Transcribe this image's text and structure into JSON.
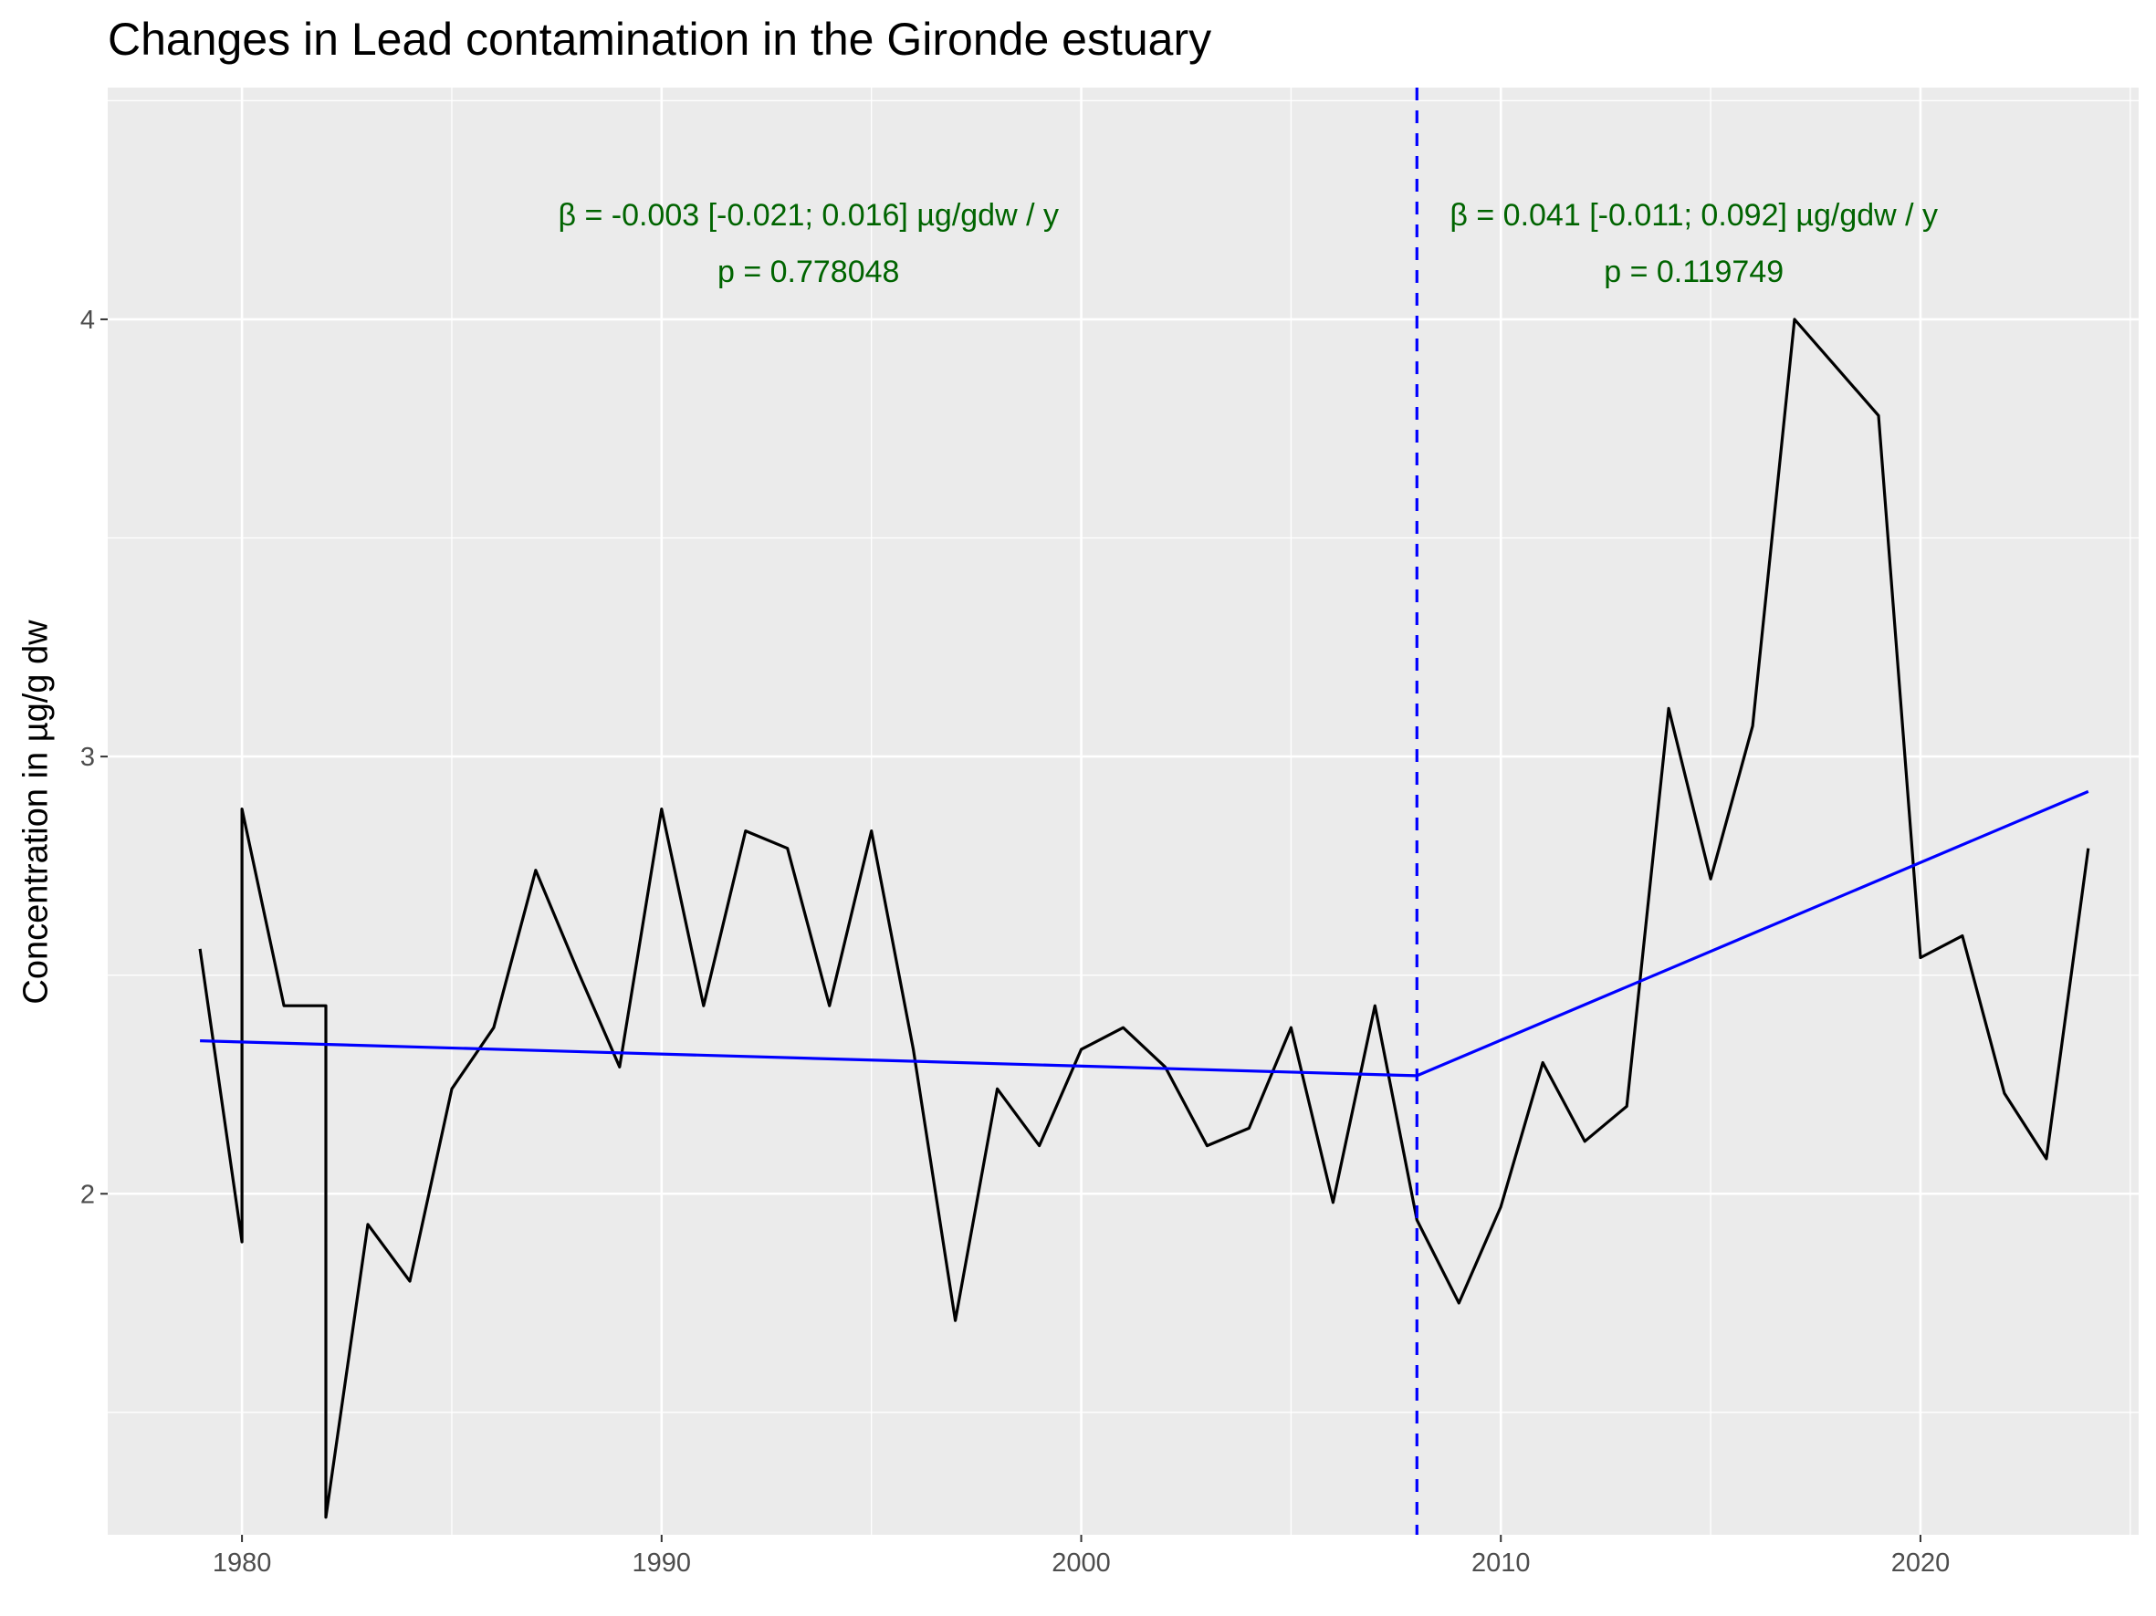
{
  "chart_data": {
    "type": "line",
    "title": "Changes in Lead contamination in the Gironde estuary",
    "xlabel": "",
    "ylabel": "Concentration in µg/g dw",
    "xlim": [
      1976.8,
      2025.2
    ],
    "ylim": [
      1.22,
      4.53
    ],
    "x_ticks": [
      1980,
      1990,
      2000,
      2010,
      2020
    ],
    "y_ticks": [
      2,
      3,
      4
    ],
    "grid": true,
    "series": [
      {
        "color": "#000000",
        "x": [
          1979,
          1980,
          1980,
          1981,
          1982,
          1982,
          1983,
          1984,
          1985,
          1986,
          1987,
          1988,
          1989,
          1990,
          1991,
          1992,
          1993,
          1994,
          1995,
          1996,
          1997,
          1998,
          1999,
          2000,
          2001,
          2002,
          2003,
          2004,
          2005,
          2006,
          2007,
          2008,
          2009,
          2010,
          2011,
          2012,
          2013,
          2014,
          2015,
          2016,
          2017,
          2018,
          2019,
          2020,
          2021,
          2022,
          2023,
          2024
        ],
        "y": [
          2.56,
          1.89,
          2.88,
          2.43,
          2.43,
          1.26,
          1.93,
          1.8,
          2.24,
          2.38,
          2.74,
          2.51,
          2.29,
          2.88,
          2.43,
          2.83,
          2.79,
          2.43,
          2.83,
          2.33,
          1.71,
          2.24,
          2.11,
          2.33,
          2.38,
          2.29,
          2.11,
          2.15,
          2.38,
          1.98,
          2.43,
          1.94,
          1.75,
          1.97,
          2.3,
          2.12,
          2.2,
          3.11,
          2.72,
          3.07,
          4.0,
          3.89,
          3.78,
          2.54,
          2.59,
          2.23,
          2.08,
          2.79
        ]
      },
      {
        "color": "#0000ff",
        "x": [
          1979,
          2008
        ],
        "y": [
          2.35,
          2.27
        ]
      },
      {
        "color": "#0000ff",
        "x": [
          2008,
          2024
        ],
        "y": [
          2.27,
          2.92
        ]
      }
    ],
    "breakpoint": {
      "x": 2008,
      "color": "#0000ff",
      "style": "dashed"
    },
    "annotations": [
      {
        "x": 1993.5,
        "y": 4.24,
        "text": "β = -0.003 [-0.021; 0.016] µg/gdw / y"
      },
      {
        "x": 1993.5,
        "y": 4.11,
        "text": "p = 0.778048"
      },
      {
        "x": 2014.6,
        "y": 4.24,
        "text": "β = 0.041 [-0.011; 0.092] µg/gdw / y"
      },
      {
        "x": 2014.6,
        "y": 4.11,
        "text": "p = 0.119749"
      }
    ],
    "annotation_color": "#006400",
    "panel_background": "#ebebeb",
    "grid_color": "#ffffff"
  }
}
